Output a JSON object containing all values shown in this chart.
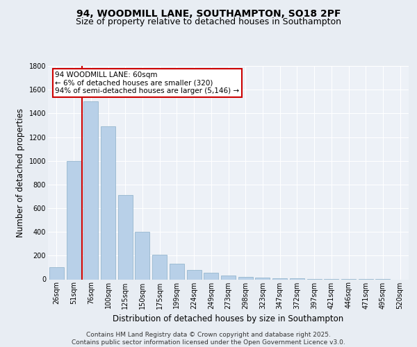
{
  "title1": "94, WOODMILL LANE, SOUTHAMPTON, SO18 2PF",
  "title2": "Size of property relative to detached houses in Southampton",
  "xlabel": "Distribution of detached houses by size in Southampton",
  "ylabel": "Number of detached properties",
  "categories": [
    "26sqm",
    "51sqm",
    "76sqm",
    "100sqm",
    "125sqm",
    "150sqm",
    "175sqm",
    "199sqm",
    "224sqm",
    "249sqm",
    "273sqm",
    "298sqm",
    "323sqm",
    "347sqm",
    "372sqm",
    "397sqm",
    "421sqm",
    "446sqm",
    "471sqm",
    "495sqm",
    "520sqm"
  ],
  "values": [
    100,
    1000,
    1500,
    1290,
    710,
    400,
    205,
    130,
    80,
    55,
    30,
    20,
    15,
    10,
    8,
    5,
    4,
    3,
    2,
    1,
    0
  ],
  "bar_color": "#b8d0e8",
  "bar_edge_color": "#8aaec8",
  "vline_color": "#cc0000",
  "vline_x_index": 1.5,
  "annotation_text": "94 WOODMILL LANE: 60sqm\n← 6% of detached houses are smaller (320)\n94% of semi-detached houses are larger (5,146) →",
  "annotation_box_color": "#ffffff",
  "annotation_box_edge_color": "#cc0000",
  "ylim": [
    0,
    1800
  ],
  "yticks": [
    0,
    200,
    400,
    600,
    800,
    1000,
    1200,
    1400,
    1600,
    1800
  ],
  "bg_color": "#e8edf3",
  "plot_bg_color": "#edf1f7",
  "footer_text": "Contains HM Land Registry data © Crown copyright and database right 2025.\nContains public sector information licensed under the Open Government Licence v3.0.",
  "title_fontsize": 10,
  "subtitle_fontsize": 9,
  "axis_label_fontsize": 8.5,
  "tick_fontsize": 7,
  "footer_fontsize": 6.5,
  "annotation_fontsize": 7.5
}
